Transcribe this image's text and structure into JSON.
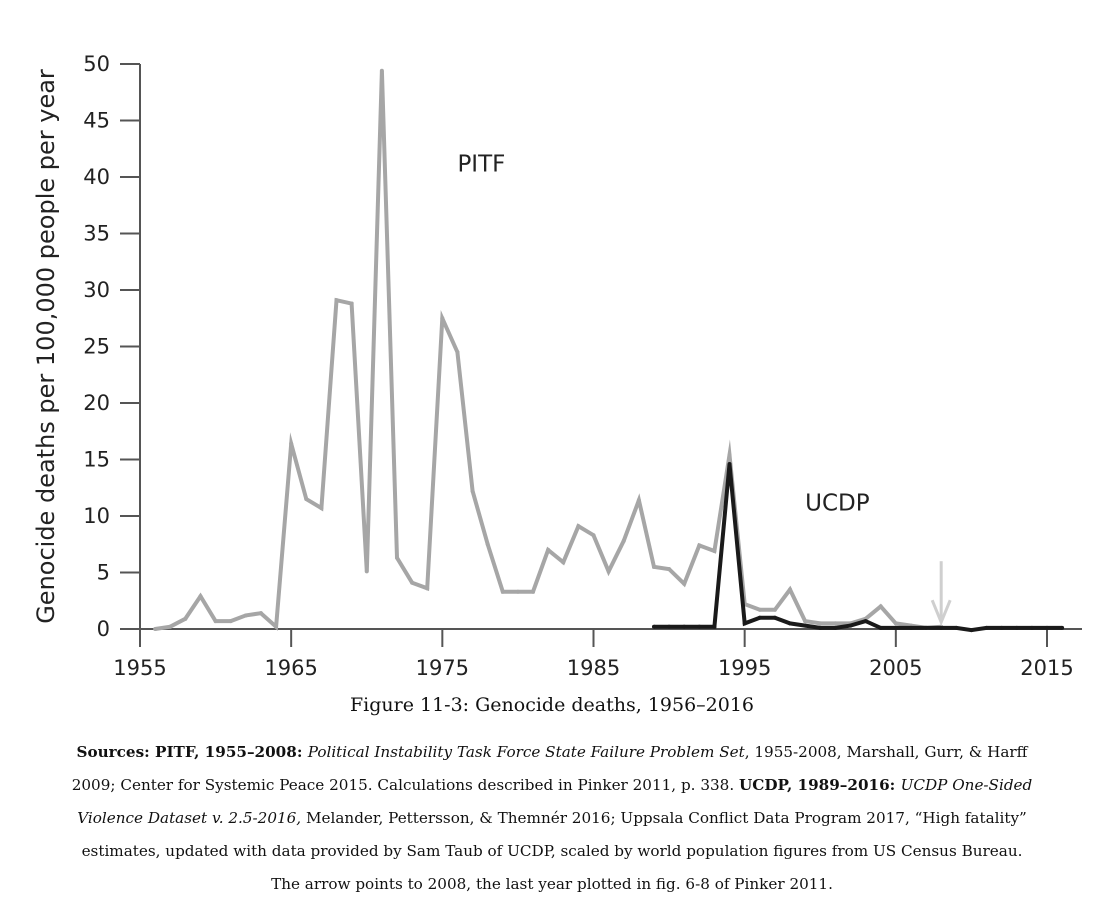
{
  "chart_data": {
    "type": "line",
    "xlabel": "",
    "ylabel": "Genocide deaths per 100,000 people per year",
    "xlim": [
      1955,
      2017
    ],
    "ylim": [
      0,
      50
    ],
    "x_ticks": [
      1955,
      1965,
      1975,
      1985,
      1995,
      2005,
      2015
    ],
    "y_ticks": [
      0,
      5,
      10,
      15,
      20,
      25,
      30,
      35,
      40,
      45,
      50
    ],
    "grid": false,
    "series": [
      {
        "name": "PITF",
        "color": "#a6a6a6",
        "x": [
          1956,
          1957,
          1958,
          1959,
          1960,
          1961,
          1962,
          1963,
          1964,
          1965,
          1966,
          1967,
          1968,
          1969,
          1970,
          1971,
          1972,
          1973,
          1974,
          1975,
          1976,
          1977,
          1978,
          1979,
          1980,
          1981,
          1982,
          1983,
          1984,
          1985,
          1986,
          1987,
          1988,
          1989,
          1990,
          1991,
          1992,
          1993,
          1994,
          1995,
          1996,
          1997,
          1998,
          1999,
          2000,
          2001,
          2002,
          2003,
          2004,
          2005,
          2006,
          2007,
          2008
        ],
        "values": [
          0,
          0.2,
          0.9,
          2.9,
          0.7,
          0.7,
          1.2,
          1.4,
          0.2,
          16.4,
          11.5,
          10.7,
          29.1,
          28.8,
          5.1,
          49.4,
          6.3,
          4.1,
          3.6,
          27.5,
          24.5,
          12.2,
          7.5,
          3.3,
          3.3,
          3.3,
          7.0,
          5.9,
          9.1,
          8.3,
          5.1,
          7.8,
          11.4,
          5.5,
          5.3,
          4.0,
          7.4,
          6.9,
          15.4,
          2.2,
          1.7,
          1.7,
          3.5,
          0.7,
          0.5,
          0.5,
          0.5,
          0.9,
          2.0,
          0.5,
          0.3,
          0.1,
          0.2
        ]
      },
      {
        "name": "UCDP",
        "color": "#1a1a1a",
        "x": [
          1989,
          1990,
          1991,
          1992,
          1993,
          1994,
          1995,
          1996,
          1997,
          1998,
          1999,
          2000,
          2001,
          2002,
          2003,
          2004,
          2005,
          2006,
          2007,
          2008,
          2009,
          2010,
          2011,
          2012,
          2013,
          2014,
          2015,
          2016
        ],
        "values": [
          0.2,
          0.2,
          0.2,
          0.2,
          0.2,
          14.6,
          0.5,
          1.0,
          1.0,
          0.5,
          0.3,
          0.1,
          0.1,
          0.3,
          0.7,
          0.1,
          0.1,
          0.1,
          0.1,
          0.1,
          0.1,
          -0.1,
          0.1,
          0.1,
          0.1,
          0.1,
          0.1,
          0.1
        ]
      }
    ],
    "annotations": [
      {
        "text": "PITF",
        "x": 1976,
        "y": 40.5
      },
      {
        "text": "UCDP",
        "x": 1999,
        "y": 10.5
      }
    ],
    "arrow": {
      "x": 2008,
      "y_top": 6.0,
      "y_bottom": 0.6,
      "color": "#cfcfcf"
    }
  },
  "figure": {
    "caption": "Figure 11-3: Genocide deaths, 1956–2016",
    "sources": [
      {
        "text": "Sources: PITF, 1955–2008: ",
        "style": "bold"
      },
      {
        "text": "Political Instability Task Force State Failure Problem Set",
        "style": "italic"
      },
      {
        "text": ", 1955-2008, Marshall, Gurr, & Harff 2009; Center for Systemic Peace 2015. Calculations described in Pinker 2011, p. 338. ",
        "style": "normal"
      },
      {
        "text": "UCDP, 1989–2016: ",
        "style": "bold"
      },
      {
        "text": "UCDP One-Sided Violence Dataset v. 2.5-2016,",
        "style": "italic"
      },
      {
        "text": " Melander, Pettersson, & Themnér 2016; Uppsala Conflict Data Program 2017, “High fatality” estimates, updated with data provided by Sam Taub of UCDP, scaled by world population figures from US Census Bureau. The arrow points to 2008, the last year plotted in fig. 6-8 of Pinker 2011.",
        "style": "normal"
      }
    ]
  }
}
